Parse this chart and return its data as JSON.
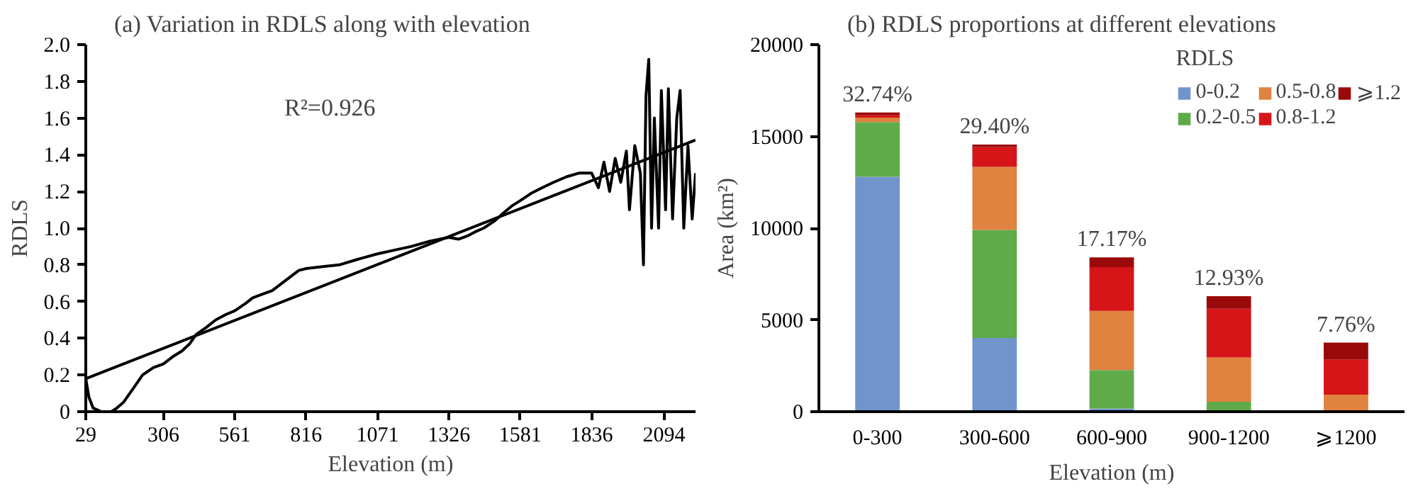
{
  "chart_data": [
    {
      "type": "line",
      "title": "(a) Variation in RDLS along with elevation",
      "xlabel": "Elevation (m)",
      "ylabel": "RDLS",
      "annotations": [
        "R²=0.926"
      ],
      "series": [
        {
          "color": "#000000",
          "x": [
            29,
            40,
            55,
            85,
            120,
            140,
            163,
            200,
            232,
            270,
            306,
            340,
            372,
            400,
            423,
            460,
            493,
            530,
            561,
            600,
            625,
            660,
            695,
            730,
            764,
            790,
            816,
            870,
            934,
            1000,
            1071,
            1130,
            1191,
            1260,
            1326,
            1360,
            1396,
            1420,
            1450,
            1490,
            1519,
            1550,
            1581,
            1620,
            1659,
            1700,
            1746,
            1790,
            1836,
            1860,
            1880,
            1900,
            1920,
            1940,
            1960,
            1971,
            1990,
            2010,
            2021,
            2030,
            2040,
            2050,
            2060,
            2075,
            2085,
            2100,
            2110,
            2125,
            2140,
            2152,
            2165,
            2180,
            2195,
            2207
          ],
          "values": [
            0.18,
            0.08,
            0.02,
            0.0,
            0.0,
            0.02,
            0.05,
            0.13,
            0.2,
            0.24,
            0.26,
            0.3,
            0.33,
            0.37,
            0.42,
            0.46,
            0.5,
            0.53,
            0.55,
            0.59,
            0.62,
            0.64,
            0.66,
            0.7,
            0.74,
            0.77,
            0.78,
            0.79,
            0.8,
            0.83,
            0.86,
            0.88,
            0.9,
            0.93,
            0.95,
            0.94,
            0.96,
            0.98,
            1.0,
            1.04,
            1.08,
            1.12,
            1.15,
            1.19,
            1.22,
            1.25,
            1.28,
            1.3,
            1.3,
            1.22,
            1.36,
            1.2,
            1.38,
            1.25,
            1.42,
            1.1,
            1.45,
            1.3,
            0.8,
            1.72,
            1.92,
            1.0,
            1.6,
            1.0,
            1.75,
            1.1,
            1.76,
            1.05,
            1.6,
            1.75,
            1.0,
            1.45,
            1.05,
            1.3
          ]
        },
        {
          "type": "line",
          "color": "#000000",
          "x": [
            29,
            2207
          ],
          "values": [
            0.18,
            1.48
          ]
        }
      ],
      "xlim": [
        29,
        2207
      ],
      "xticks": [
        29,
        306,
        561,
        816,
        1071,
        1326,
        1581,
        1836,
        2094
      ],
      "ylim": [
        0,
        2.0
      ],
      "yticks": [
        0,
        0.2,
        0.4,
        0.6,
        0.8,
        {
          "value": 1.0,
          "label": "1.0"
        },
        1.2,
        1.4,
        1.6,
        1.8,
        {
          "value": 2.0,
          "label": "2.0"
        }
      ],
      "grid": false
    },
    {
      "type": "bar",
      "stacked": true,
      "title": "(b) RDLS proportions at different elevations",
      "xlabel": "Elevation (m)",
      "ylabel": "Area (km²)",
      "legend_title": "RDLS",
      "legend": "top right",
      "grid": false,
      "categories": [
        "0-300",
        "300-600",
        "600-900",
        "900-1200",
        "⩾1200"
      ],
      "series": [
        {
          "name": "0-0.2",
          "color": "#7294cc",
          "values": [
            12800,
            4020,
            170,
            0,
            0
          ]
        },
        {
          "name": "0.2-0.5",
          "color": "#5fab4a",
          "values": [
            2980,
            5880,
            2100,
            540,
            0
          ]
        },
        {
          "name": "0.5-0.8",
          "color": "#e08240",
          "values": [
            240,
            3440,
            3220,
            2410,
            930
          ]
        },
        {
          "name": "0.8-1.2",
          "color": "#d61518",
          "values": [
            130,
            1070,
            2390,
            2660,
            1900
          ]
        },
        {
          "name": "⩾1.2",
          "color": "#9b0a0a",
          "values": [
            150,
            150,
            530,
            680,
            930
          ]
        }
      ],
      "annotations": [
        {
          "text": "32.74%",
          "x": "0-300",
          "y": 16300
        },
        {
          "text": "29.40%",
          "x": "300-600",
          "y": 14560
        },
        {
          "text": "17.17%",
          "x": "600-900",
          "y": 8410
        },
        {
          "text": "12.93%",
          "x": "900-1200",
          "y": 6290
        },
        {
          "text": "7.76%",
          "x": "⩾1200",
          "y": 3760
        }
      ],
      "ylim": [
        0,
        20000
      ],
      "yticks": [
        0,
        5000,
        10000,
        15000,
        20000
      ]
    }
  ]
}
